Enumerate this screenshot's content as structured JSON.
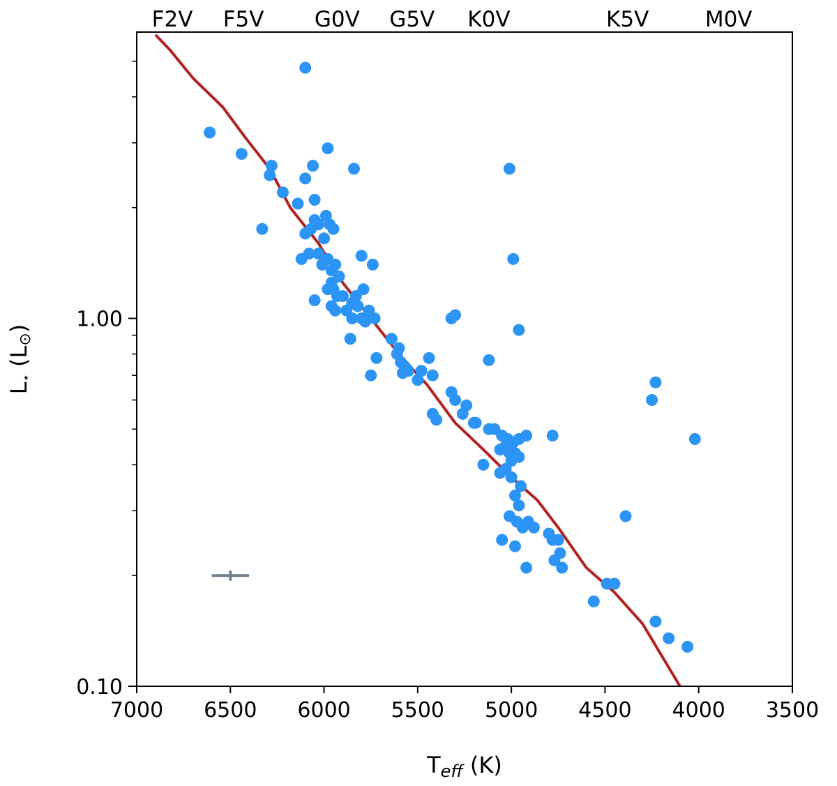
{
  "chart_data": {
    "type": "scatter",
    "xlabel": "T",
    "xlabel_sub": "eff",
    "xlabel_unit": " (K)",
    "ylabel": "L",
    "ylabel_sub": "⋆",
    "ylabel_unit": " (L",
    "ylabel_unit_sub": "⊙",
    "ylabel_close": ")",
    "xlim": [
      7000,
      3500
    ],
    "ylim": [
      0.1,
      6.0
    ],
    "yscale": "log",
    "x_ticks": [
      7000,
      6500,
      6000,
      5500,
      5000,
      4500,
      4000,
      3500
    ],
    "x_tick_labels": [
      "7000",
      "6500",
      "6000",
      "5500",
      "5000",
      "4500",
      "4000",
      "3500"
    ],
    "y_ticks": [
      0.1,
      1.0
    ],
    "y_tick_labels": [
      "0.10",
      "1.00"
    ],
    "spectral_types": [
      {
        "label": "F2V",
        "teff": 6810
      },
      {
        "label": "F5V",
        "teff": 6430
      },
      {
        "label": "G0V",
        "teff": 5930
      },
      {
        "label": "G5V",
        "teff": 5530
      },
      {
        "label": "K0V",
        "teff": 5120
      },
      {
        "label": "K5V",
        "teff": 4380
      },
      {
        "label": "M0V",
        "teff": 3840
      }
    ],
    "colors": {
      "points": "#2b94f5",
      "line": "#b22222",
      "errorbar": "#6f7f8f"
    },
    "points": [
      [
        6100,
        4.8
      ],
      [
        6610,
        3.2
      ],
      [
        6440,
        2.8
      ],
      [
        6280,
        2.6
      ],
      [
        6290,
        2.45
      ],
      [
        6220,
        2.2
      ],
      [
        6140,
        2.05
      ],
      [
        6100,
        2.4
      ],
      [
        6060,
        2.6
      ],
      [
        6050,
        2.1
      ],
      [
        5980,
        2.9
      ],
      [
        5840,
        2.55
      ],
      [
        6330,
        1.75
      ],
      [
        6120,
        1.45
      ],
      [
        6100,
        1.7
      ],
      [
        6070,
        1.75
      ],
      [
        6050,
        1.85
      ],
      [
        6030,
        1.8
      ],
      [
        6000,
        1.65
      ],
      [
        5990,
        1.9
      ],
      [
        5970,
        1.8
      ],
      [
        5950,
        1.75
      ],
      [
        6080,
        1.5
      ],
      [
        6030,
        1.5
      ],
      [
        6010,
        1.4
      ],
      [
        5980,
        1.45
      ],
      [
        5960,
        1.35
      ],
      [
        5940,
        1.4
      ],
      [
        5920,
        1.3
      ],
      [
        5960,
        1.25
      ],
      [
        5980,
        1.2
      ],
      [
        5950,
        1.2
      ],
      [
        5930,
        1.15
      ],
      [
        6050,
        1.12
      ],
      [
        5960,
        1.08
      ],
      [
        5900,
        1.15
      ],
      [
        5880,
        1.05
      ],
      [
        5850,
        1.1
      ],
      [
        5830,
        1.15
      ],
      [
        5820,
        1.08
      ],
      [
        5940,
        1.05
      ],
      [
        5790,
        1.2
      ],
      [
        5800,
        1.48
      ],
      [
        5740,
        1.4
      ],
      [
        5760,
        1.05
      ],
      [
        5850,
        1.0
      ],
      [
        5800,
        1.0
      ],
      [
        5780,
        0.98
      ],
      [
        5730,
        1.0
      ],
      [
        5860,
        0.88
      ],
      [
        5720,
        0.78
      ],
      [
        5750,
        0.7
      ],
      [
        5640,
        0.88
      ],
      [
        5600,
        0.83
      ],
      [
        5610,
        0.8
      ],
      [
        5590,
        0.76
      ],
      [
        5570,
        0.74
      ],
      [
        5550,
        0.72
      ],
      [
        5580,
        0.71
      ],
      [
        5500,
        0.68
      ],
      [
        5480,
        0.72
      ],
      [
        5440,
        0.78
      ],
      [
        5420,
        0.7
      ],
      [
        5320,
        1.0
      ],
      [
        5300,
        1.02
      ],
      [
        5120,
        0.77
      ],
      [
        5320,
        0.63
      ],
      [
        5300,
        0.6
      ],
      [
        5240,
        0.58
      ],
      [
        5260,
        0.55
      ],
      [
        5420,
        0.55
      ],
      [
        5400,
        0.53
      ],
      [
        5200,
        0.52
      ],
      [
        5190,
        0.52
      ],
      [
        5120,
        0.5
      ],
      [
        5090,
        0.5
      ],
      [
        5050,
        0.48
      ],
      [
        5020,
        0.47
      ],
      [
        5060,
        0.44
      ],
      [
        5030,
        0.45
      ],
      [
        4990,
        0.46
      ],
      [
        4960,
        0.47
      ],
      [
        4920,
        0.48
      ],
      [
        5010,
        0.43
      ],
      [
        4980,
        0.43
      ],
      [
        5000,
        0.41
      ],
      [
        4960,
        0.42
      ],
      [
        5150,
        0.4
      ],
      [
        5060,
        0.38
      ],
      [
        5030,
        0.39
      ],
      [
        5000,
        0.37
      ],
      [
        4950,
        0.35
      ],
      [
        4980,
        0.33
      ],
      [
        4960,
        0.31
      ],
      [
        5010,
        0.29
      ],
      [
        4970,
        0.28
      ],
      [
        4940,
        0.27
      ],
      [
        4910,
        0.28
      ],
      [
        4880,
        0.27
      ],
      [
        4800,
        0.26
      ],
      [
        4780,
        0.25
      ],
      [
        4750,
        0.25
      ],
      [
        5050,
        0.25
      ],
      [
        4980,
        0.24
      ],
      [
        4770,
        0.22
      ],
      [
        4740,
        0.23
      ],
      [
        4730,
        0.21
      ],
      [
        4920,
        0.21
      ],
      [
        4780,
        0.48
      ],
      [
        4490,
        0.19
      ],
      [
        4450,
        0.19
      ],
      [
        4560,
        0.17
      ],
      [
        4390,
        0.29
      ],
      [
        4250,
        0.6
      ],
      [
        4230,
        0.67
      ],
      [
        4020,
        0.47
      ],
      [
        4230,
        0.15
      ],
      [
        4160,
        0.135
      ],
      [
        4060,
        0.128
      ],
      [
        5010,
        2.55
      ],
      [
        4990,
        1.45
      ],
      [
        4960,
        0.93
      ]
    ],
    "track": [
      [
        6900,
        5.9
      ],
      [
        6820,
        5.35
      ],
      [
        6700,
        4.5
      ],
      [
        6540,
        3.75
      ],
      [
        6420,
        3.1
      ],
      [
        6290,
        2.55
      ],
      [
        6180,
        2.0
      ],
      [
        6030,
        1.6
      ],
      [
        5900,
        1.25
      ],
      [
        5750,
        1.0
      ],
      [
        5600,
        0.8
      ],
      [
        5450,
        0.66
      ],
      [
        5300,
        0.52
      ],
      [
        5150,
        0.44
      ],
      [
        5000,
        0.37
      ],
      [
        4860,
        0.32
      ],
      [
        4750,
        0.27
      ],
      [
        4600,
        0.21
      ],
      [
        4450,
        0.18
      ],
      [
        4300,
        0.148
      ],
      [
        4100,
        0.1
      ]
    ],
    "errorbar": {
      "x": 6500,
      "y": 0.2,
      "xerr": 100,
      "yerr_frac": 0.032
    }
  }
}
